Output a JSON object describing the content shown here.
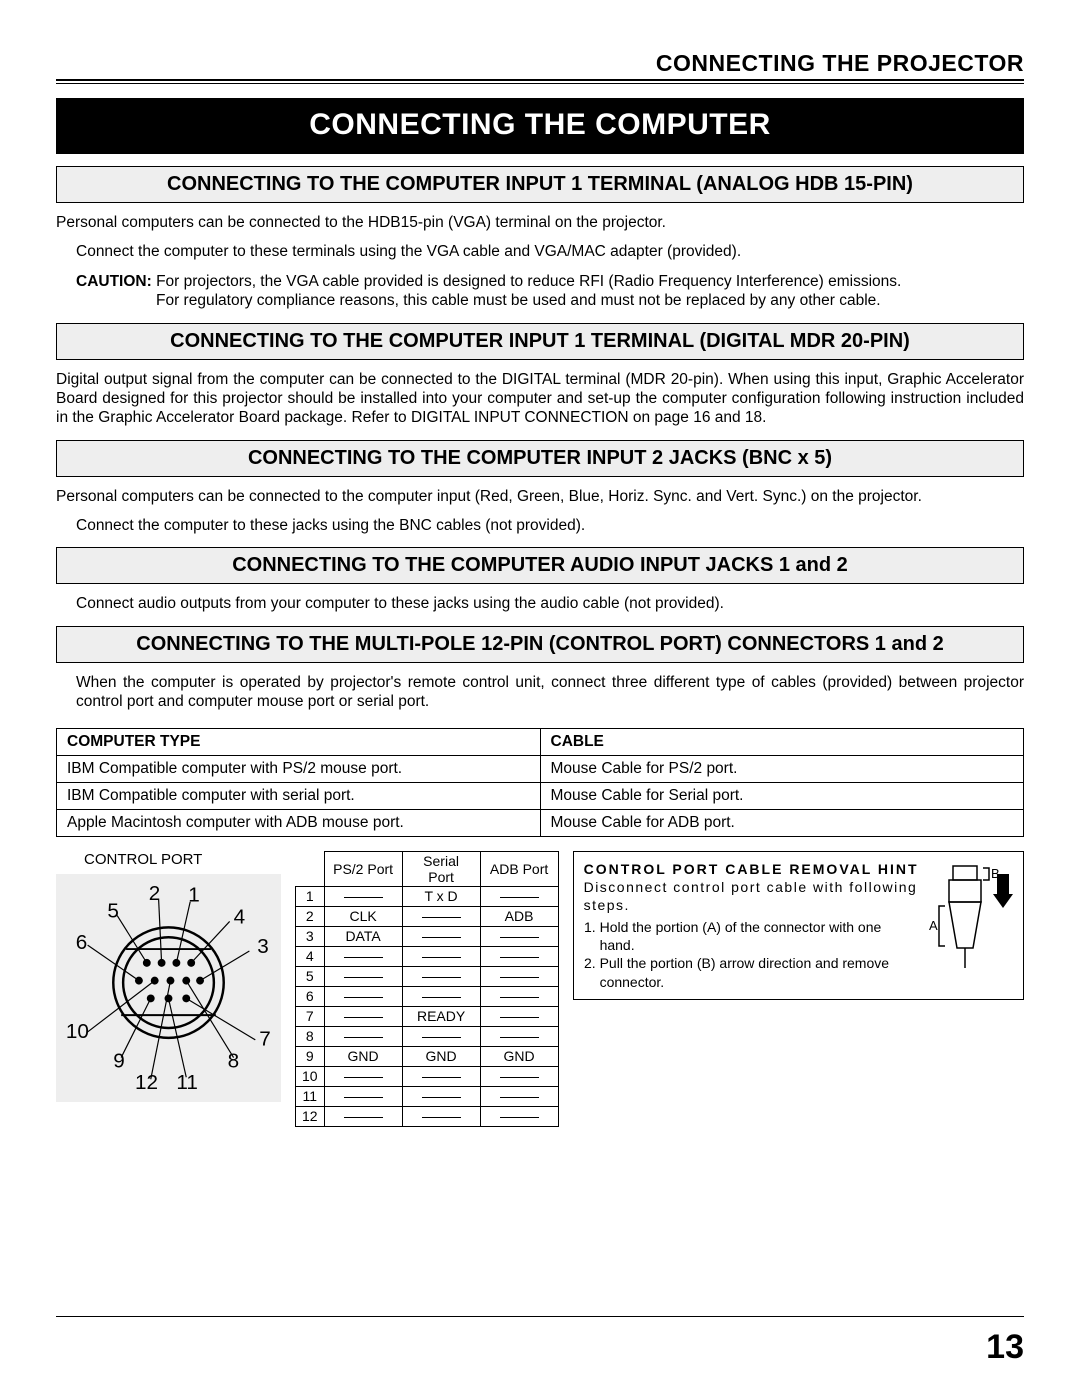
{
  "header": {
    "title": "CONNECTING THE PROJECTOR"
  },
  "banner": "CONNECTING THE COMPUTER",
  "sec1": {
    "heading": "CONNECTING TO THE COMPUTER INPUT 1 TERMINAL (ANALOG HDB 15-PIN)",
    "p1": "Personal computers can be connected to the HDB15-pin (VGA) terminal on the projector.",
    "p2": "Connect the computer to these terminals using the VGA cable and VGA/MAC adapter (provided).",
    "caution_label": "CAUTION:",
    "caution1": " For projectors, the VGA cable provided is designed to reduce RFI (Radio Frequency Interference) emissions.",
    "caution2": "For regulatory compliance reasons, this cable must be used and must not be replaced by any other cable."
  },
  "sec2": {
    "heading": "CONNECTING TO THE COMPUTER INPUT 1 TERMINAL (DIGITAL MDR 20-PIN)",
    "p1": "Digital output signal from the computer can be connected to the DIGITAL terminal (MDR 20-pin). When using this input, Graphic Accelerator Board designed for this projector should be installed into your computer and set-up the computer configuration following instruction included in the Graphic Accelerator Board package. Refer to DIGITAL INPUT CONNECTION on page 16 and 18."
  },
  "sec3": {
    "heading": "CONNECTING TO THE COMPUTER INPUT 2 JACKS (BNC x 5)",
    "p1": "Personal computers can be connected to the computer input (Red, Green, Blue, Horiz. Sync. and Vert. Sync.) on the projector.",
    "p2": "Connect the computer to these jacks using the BNC cables (not provided)."
  },
  "sec4": {
    "heading": "CONNECTING TO THE COMPUTER AUDIO INPUT JACKS 1 and 2",
    "p1": "Connect audio outputs from your computer to these jacks using the audio cable (not provided)."
  },
  "sec5": {
    "heading": "CONNECTING TO THE MULTI-POLE 12-PIN (CONTROL PORT) CONNECTORS 1 and 2",
    "p1": "When the computer is operated by projector's remote control unit, connect three different type of cables (provided) between projector control port and computer mouse port or serial port."
  },
  "cable_table": {
    "col1": "COMPUTER TYPE",
    "col2": "CABLE",
    "rows": [
      {
        "type": "IBM Compatible computer with PS/2 mouse port.",
        "cable": "Mouse Cable for PS/2 port."
      },
      {
        "type": "IBM Compatible computer with serial port.",
        "cable": "Mouse Cable for Serial port."
      },
      {
        "type": "Apple Macintosh computer with ADB mouse port.",
        "cable": "Mouse Cable for ADB port."
      }
    ]
  },
  "port_diagram": {
    "label": "CONTROL PORT",
    "pins": [
      "1",
      "2",
      "3",
      "4",
      "5",
      "6",
      "7",
      "8",
      "9",
      "10",
      "11",
      "12"
    ]
  },
  "pin_table": {
    "headers": [
      "",
      "PS/2 Port",
      "Serial Port",
      "ADB Port"
    ],
    "rows": [
      [
        "1",
        "—",
        "T x D",
        "—"
      ],
      [
        "2",
        "CLK",
        "—",
        "ADB"
      ],
      [
        "3",
        "DATA",
        "—",
        "—"
      ],
      [
        "4",
        "—",
        "—",
        "—"
      ],
      [
        "5",
        "—",
        "—",
        "—"
      ],
      [
        "6",
        "—",
        "—",
        "—"
      ],
      [
        "7",
        "—",
        "READY",
        "—"
      ],
      [
        "8",
        "—",
        "—",
        "—"
      ],
      [
        "9",
        "GND",
        "GND",
        "GND"
      ],
      [
        "10",
        "—",
        "—",
        "—"
      ],
      [
        "11",
        "—",
        "—",
        "—"
      ],
      [
        "12",
        "—",
        "—",
        "—"
      ]
    ]
  },
  "hint": {
    "title": "CONTROL PORT CABLE REMOVAL HINT",
    "lead": "Disconnect control port cable with following steps.",
    "step1": "Hold the portion (A) of the connector with one hand.",
    "step2": "Pull the portion (B) arrow direction and remove connector.",
    "label_a": "A",
    "label_b": "B"
  },
  "page": "13"
}
